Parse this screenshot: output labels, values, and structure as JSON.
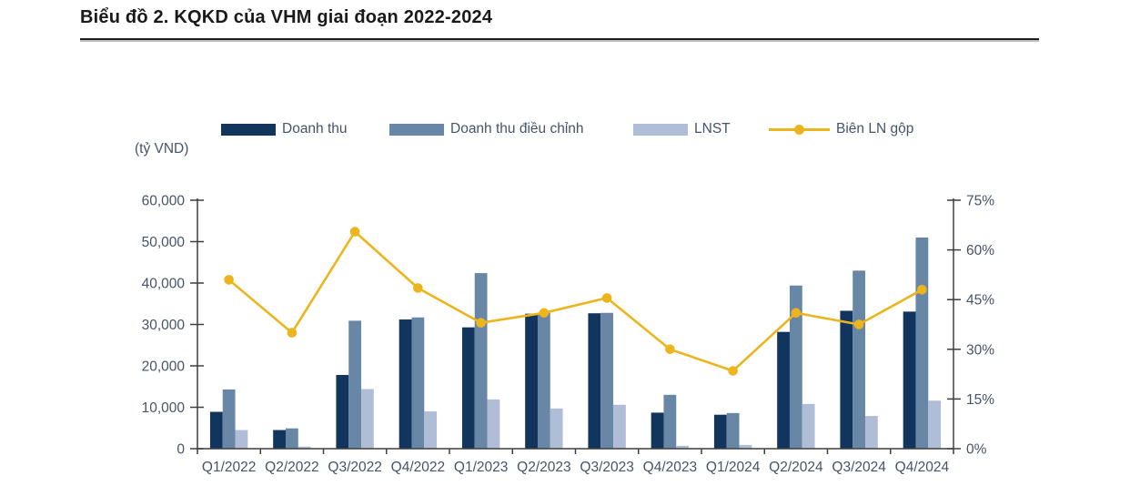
{
  "title": "Biểu đồ 2. KQKD của VHM giai đoạn 2022-2024",
  "axis_unit_label": "(tỷ VND)",
  "legend": [
    {
      "label": "Doanh thu",
      "color": "#12355e",
      "marker": "bar-swatch"
    },
    {
      "label": "Doanh thu điều chỉnh",
      "color": "#6886a6",
      "marker": "bar-swatch"
    },
    {
      "label": "LNST",
      "color": "#afbed6",
      "marker": "bar-swatch"
    },
    {
      "label": "Biên LN gộp",
      "color": "#ecb51d",
      "marker": "line-marker"
    }
  ],
  "chart_data": {
    "type": "bar",
    "subtype": "combo bar + line, dual axis",
    "title": "Biểu đồ 2. KQKD của VHM giai đoạn 2022-2024",
    "categories": [
      "Q1/2022",
      "Q2/2022",
      "Q3/2022",
      "Q4/2022",
      "Q1/2023",
      "Q2/2023",
      "Q3/2023",
      "Q4/2023",
      "Q1/2024",
      "Q2/2024",
      "Q3/2024",
      "Q4/2024"
    ],
    "series": [
      {
        "name": "Doanh thu",
        "type": "bar",
        "axis": "left",
        "color": "#12355e",
        "values": [
          8900,
          4500,
          17800,
          31200,
          29300,
          32600,
          32700,
          8700,
          8200,
          28200,
          33300,
          33100
        ]
      },
      {
        "name": "Doanh thu điều chỉnh",
        "type": "bar",
        "axis": "left",
        "color": "#6886a6",
        "values": [
          14300,
          4900,
          30900,
          31700,
          42400,
          32800,
          32800,
          13000,
          8600,
          39400,
          43000,
          51000
        ]
      },
      {
        "name": "LNST",
        "type": "bar",
        "axis": "left",
        "color": "#afbed6",
        "values": [
          4500,
          500,
          14400,
          9000,
          11900,
          9700,
          10600,
          700,
          900,
          10800,
          7900,
          11600
        ]
      },
      {
        "name": "Biên LN gộp",
        "type": "line",
        "axis": "right",
        "color": "#ecb51d",
        "unit": "%",
        "values": [
          51,
          35,
          65.5,
          48.5,
          38,
          41,
          45.5,
          30,
          23.5,
          41,
          37.5,
          48
        ]
      }
    ],
    "left_axis": {
      "min": 0,
      "max": 60000,
      "unit_label": "(tỷ VND)",
      "tick_labels_bottom_to_top": [
        "0",
        "10,000",
        "20,000",
        "30,000",
        "40,000",
        "50,000",
        "60,000"
      ]
    },
    "right_axis": {
      "min": 0,
      "max": 75,
      "tick_labels_bottom_to_top": [
        "0%",
        "15%",
        "30%",
        "45%",
        "60%",
        "75%"
      ]
    },
    "grid": false,
    "legend_position": "top"
  }
}
